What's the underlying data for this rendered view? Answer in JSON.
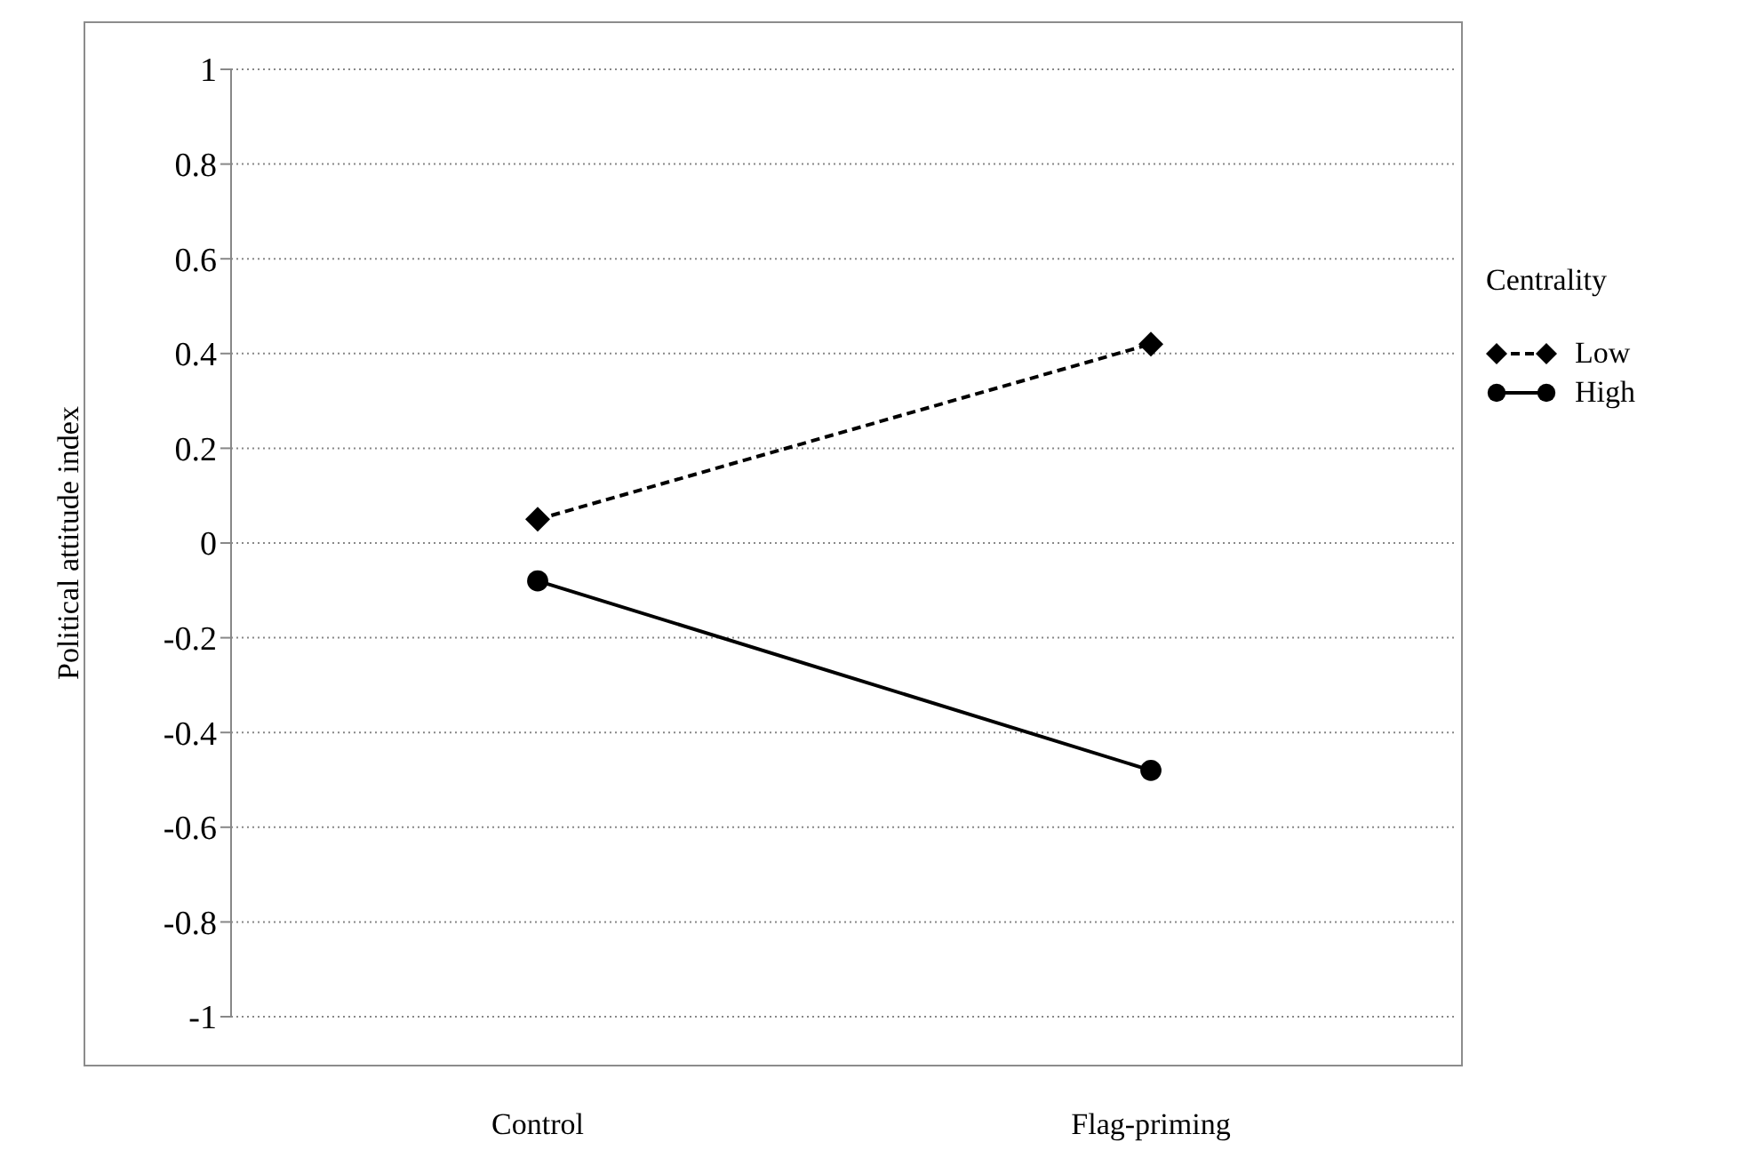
{
  "chart_data": {
    "type": "line",
    "ylabel": "Political attitude index",
    "legend_title": "Centrality",
    "categories": [
      "Control",
      "Flag-priming"
    ],
    "series": [
      {
        "name": "Low",
        "color": "#000000",
        "values": [
          0.05,
          0.42
        ],
        "marker": "diamond",
        "line_style": "dashed"
      },
      {
        "name": "High",
        "color": "#000000",
        "values": [
          -0.08,
          -0.48
        ],
        "marker": "circle",
        "line_style": "solid"
      }
    ],
    "ylim": [
      -1,
      1
    ],
    "yticks": [
      -1,
      -0.8,
      -0.6,
      -0.4,
      -0.2,
      0,
      0.2,
      0.4,
      0.6,
      0.8,
      1
    ],
    "grid": "y",
    "legend": "right"
  }
}
